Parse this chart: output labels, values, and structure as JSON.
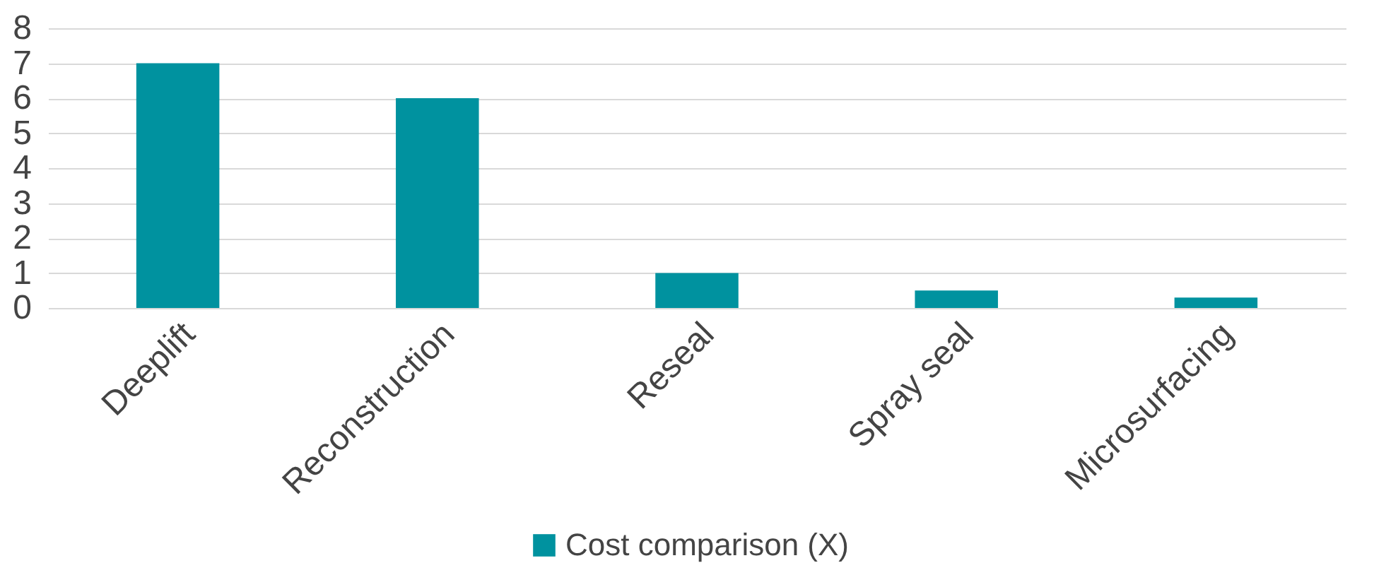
{
  "chart_data": {
    "type": "bar",
    "categories": [
      "Deeplift",
      "Reconstruction",
      "Reseal",
      "Spray seal",
      "Microsurfacing"
    ],
    "series": [
      {
        "name": "Cost comparison (X)",
        "color": "#00929f",
        "values": [
          7,
          6,
          1,
          0.5,
          0.3
        ]
      }
    ],
    "ylim": [
      0,
      8
    ],
    "yticks": [
      0,
      1,
      2,
      3,
      4,
      5,
      6,
      7,
      8
    ],
    "grid": "y",
    "legend": "bottom"
  }
}
